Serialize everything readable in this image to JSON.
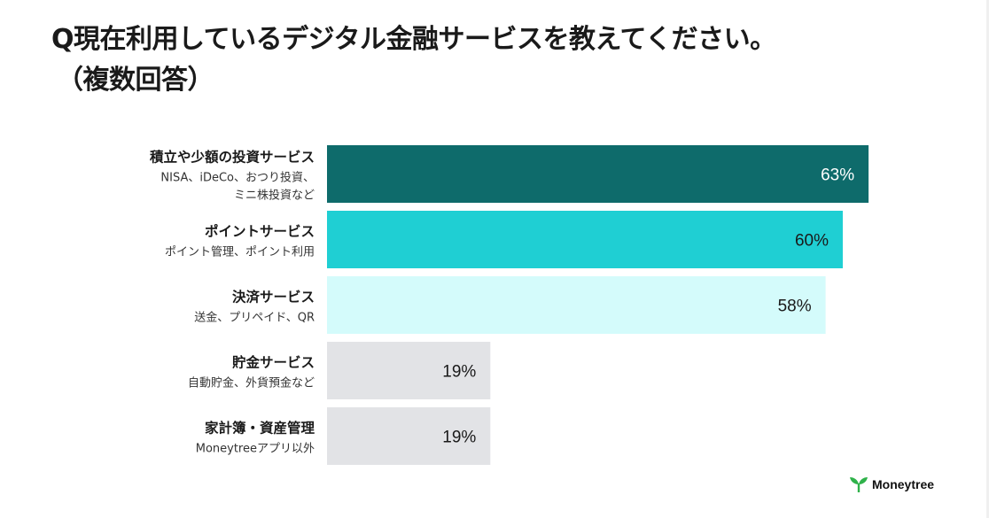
{
  "title_line1": "Q現在利用しているデジタル金融サービスを教えてください。",
  "title_line2": "（複数回答）",
  "chart_data": {
    "type": "bar",
    "orientation": "horizontal",
    "xlim": [
      0,
      100
    ],
    "categories": [
      {
        "label": "積立や少額の投資サービス",
        "sub": [
          "NISA、iDeCo、おつり投資、",
          "ミニ株投資など"
        ]
      },
      {
        "label": "ポイントサービス",
        "sub": [
          "ポイント管理、ポイント利用"
        ]
      },
      {
        "label": "決済サービス",
        "sub": [
          "送金、プリペイド、QR"
        ]
      },
      {
        "label": "貯金サービス",
        "sub": [
          "自動貯金、外貨預金など"
        ]
      },
      {
        "label": "家計簿・資産管理",
        "sub": [
          "Moneytreeアプリ以外"
        ]
      }
    ],
    "values": [
      63,
      60,
      58,
      19,
      19
    ],
    "value_labels": [
      "63%",
      "60%",
      "58%",
      "19%",
      "19%"
    ],
    "colors": [
      "#0e6b6b",
      "#1fcfd3",
      "#d4fbfb",
      "#e2e3e6",
      "#e2e3e6"
    ],
    "label_colors": [
      "#ffffff",
      "#1a1a1a",
      "#1a1a1a",
      "#1a1a1a",
      "#1a1a1a"
    ],
    "grid": false
  },
  "logo": {
    "text": "Moneytree",
    "icon": "sprout-icon",
    "color": "#2fb24a"
  }
}
